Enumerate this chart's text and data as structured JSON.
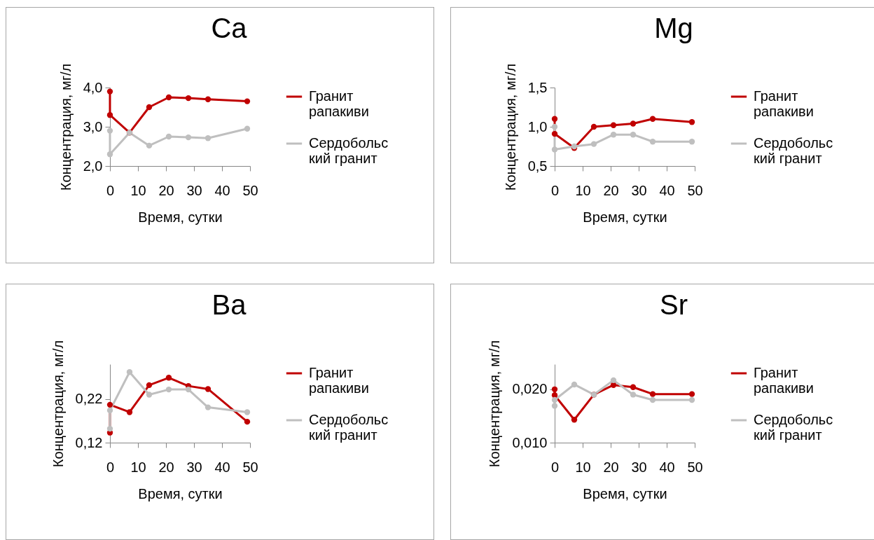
{
  "chart_data": [
    {
      "type": "line",
      "title": "Ca",
      "xlabel": "Время, сутки",
      "ylabel": "Концентрация, мг/л",
      "x": [
        0,
        0,
        7,
        14,
        21,
        28,
        35,
        49
      ],
      "xlim": [
        0,
        50
      ],
      "xticks": [
        0,
        10,
        20,
        30,
        40,
        50
      ],
      "ylim": [
        2,
        4
      ],
      "yticks": [
        {
          "value": 2,
          "label": "2,0"
        },
        {
          "value": 3,
          "label": "3,0"
        },
        {
          "value": 4,
          "label": "4,0"
        }
      ],
      "legend": "right",
      "marker": "circle",
      "series": [
        {
          "name": "Гранит рапакиви",
          "color": "#c00000",
          "values": [
            3.9,
            3.3,
            2.85,
            3.5,
            3.75,
            3.73,
            3.7,
            3.65
          ]
        },
        {
          "name": "Сердобольский гранит",
          "color": "#bfbfbf",
          "values": [
            2.9,
            2.3,
            2.85,
            2.52,
            2.75,
            2.73,
            2.71,
            2.95
          ]
        }
      ]
    },
    {
      "type": "line",
      "title": "Mg",
      "xlabel": "Время, сутки",
      "ylabel": "Концентрация, мг/л",
      "x": [
        0,
        0,
        7,
        14,
        21,
        28,
        35,
        49
      ],
      "xlim": [
        0,
        50
      ],
      "xticks": [
        0,
        10,
        20,
        30,
        40,
        50
      ],
      "ylim": [
        0.5,
        1.5
      ],
      "yticks": [
        {
          "value": 0.5,
          "label": "0,5"
        },
        {
          "value": 1,
          "label": "1,0"
        },
        {
          "value": 1.5,
          "label": "1,5"
        }
      ],
      "legend": "right",
      "marker": "circle",
      "series": [
        {
          "name": "Гранит рапакиви",
          "color": "#c00000",
          "values": [
            1.1,
            0.91,
            0.73,
            1.0,
            1.02,
            1.04,
            1.1,
            1.06
          ]
        },
        {
          "name": "Сердобольский гранит",
          "color": "#bfbfbf",
          "values": [
            1.0,
            0.71,
            0.75,
            0.78,
            0.9,
            0.9,
            0.81,
            0.81
          ]
        }
      ]
    },
    {
      "type": "line",
      "title": "Ba",
      "xlabel": "Время, сутки",
      "ylabel": "Концентрация, мг/л",
      "x": [
        0,
        0,
        7,
        14,
        21,
        28,
        35,
        49
      ],
      "xlim": [
        0,
        50
      ],
      "xticks": [
        0,
        10,
        20,
        30,
        40,
        50
      ],
      "ylim": [
        0.12,
        0.3
      ],
      "yticks": [
        {
          "value": 0.12,
          "label": "0,12"
        },
        {
          "value": 0.22,
          "label": "0,22"
        }
      ],
      "legend": "right",
      "marker": "circle",
      "series": [
        {
          "name": "Гранит рапакиви",
          "color": "#c00000",
          "values": [
            0.143,
            0.207,
            0.19,
            0.252,
            0.269,
            0.25,
            0.243,
            0.168
          ]
        },
        {
          "name": "Сердобольский гранит",
          "color": "#bfbfbf",
          "values": [
            0.152,
            0.194,
            0.282,
            0.23,
            0.242,
            0.242,
            0.201,
            0.19
          ]
        }
      ]
    },
    {
      "type": "line",
      "title": "Sr",
      "xlabel": "Время, сутки",
      "ylabel": "Концентрация, мг/л",
      "x": [
        0,
        0,
        7,
        14,
        21,
        28,
        35,
        49
      ],
      "xlim": [
        0,
        50
      ],
      "xticks": [
        0,
        10,
        20,
        30,
        40,
        50
      ],
      "ylim": [
        0.01,
        0.0247
      ],
      "yticks": [
        {
          "value": 0.01,
          "label": "0,010"
        },
        {
          "value": 0.02,
          "label": "0,020"
        }
      ],
      "legend": "right",
      "marker": "circle",
      "series": [
        {
          "name": "Гранит рапакиви",
          "color": "#c00000",
          "values": [
            0.02,
            0.0189,
            0.0143,
            0.019,
            0.0208,
            0.0204,
            0.0191,
            0.0191
          ]
        },
        {
          "name": "Сердобольский гранит",
          "color": "#bfbfbf",
          "values": [
            0.0169,
            0.018,
            0.0209,
            0.019,
            0.0217,
            0.019,
            0.018,
            0.018
          ]
        }
      ]
    }
  ]
}
